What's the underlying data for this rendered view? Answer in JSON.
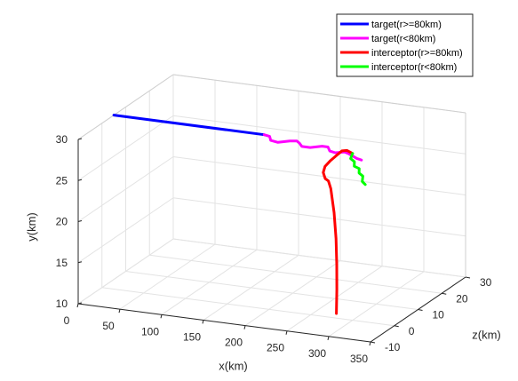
{
  "chart_data": {
    "type": "line3d",
    "xlabel": "x(km)",
    "ylabel": "y(km)",
    "zlabel": "z(km)",
    "xlim": [
      0,
      350
    ],
    "ylim": [
      10,
      30
    ],
    "zlim": [
      -10,
      30
    ],
    "x_ticks": [
      "0",
      "50",
      "100",
      "150",
      "200",
      "250",
      "300",
      "350"
    ],
    "y_ticks": [
      "10",
      "15",
      "20",
      "25",
      "30"
    ],
    "z_ticks": [
      "-10",
      "0",
      "10",
      "20",
      "30"
    ],
    "grid": true,
    "legend_position": "top-right",
    "series": [
      {
        "name": "target(r>=80km)",
        "color": "#0000ff",
        "points": [
          [
            0,
            30,
            5
          ],
          [
            180,
            30,
            5
          ]
        ]
      },
      {
        "name": "target(r<80km)",
        "color": "#ff00ff",
        "points": [
          [
            180,
            30,
            5
          ],
          [
            188,
            30,
            4.5
          ],
          [
            195,
            30,
            2.5
          ],
          [
            205,
            30,
            2
          ],
          [
            215,
            30,
            3.5
          ],
          [
            222,
            30,
            4
          ],
          [
            228,
            30,
            3
          ],
          [
            235,
            30,
            1.5
          ],
          [
            245,
            30,
            1.5
          ],
          [
            255,
            30,
            3
          ],
          [
            262,
            30,
            3
          ],
          [
            270,
            30,
            1
          ],
          [
            278,
            30,
            0.5
          ],
          [
            286,
            30,
            1.5
          ],
          [
            292,
            30,
            1
          ],
          [
            300,
            30,
            0
          ],
          [
            308,
            30,
            -1
          ],
          [
            315,
            30,
            -1.5
          ]
        ]
      },
      {
        "name": "interceptor(r>=80km)",
        "color": "#ff0000",
        "points": [
          [
            275,
            10.1,
            2
          ],
          [
            275,
            13,
            2.2
          ],
          [
            274,
            16,
            2.5
          ],
          [
            272,
            19,
            2.9
          ],
          [
            268,
            22,
            3.5
          ],
          [
            262,
            24.7,
            4.2
          ],
          [
            258,
            25.5,
            4.6
          ],
          [
            255,
            25.8,
            4.3
          ],
          [
            255,
            26.7,
            3.5
          ],
          [
            260,
            27.7,
            2.5
          ],
          [
            268,
            28.6,
            1.8
          ],
          [
            276,
            29.4,
            1.5
          ],
          [
            283,
            30.1,
            1.5
          ],
          [
            290,
            30.3,
            1.2
          ],
          [
            300,
            30.3,
            0
          ]
        ]
      },
      {
        "name": "interceptor(r<80km)",
        "color": "#00ff00",
        "points": [
          [
            300,
            30.3,
            0
          ],
          [
            302,
            30,
            -1.5
          ],
          [
            308,
            29.8,
            -2
          ],
          [
            312,
            29.6,
            -3.5
          ],
          [
            318,
            29.4,
            -3.5
          ],
          [
            322,
            29.2,
            -5
          ],
          [
            328,
            29,
            -5.5
          ],
          [
            333,
            28.8,
            -7.5
          ],
          [
            338,
            28.6,
            -8
          ]
        ]
      }
    ]
  }
}
